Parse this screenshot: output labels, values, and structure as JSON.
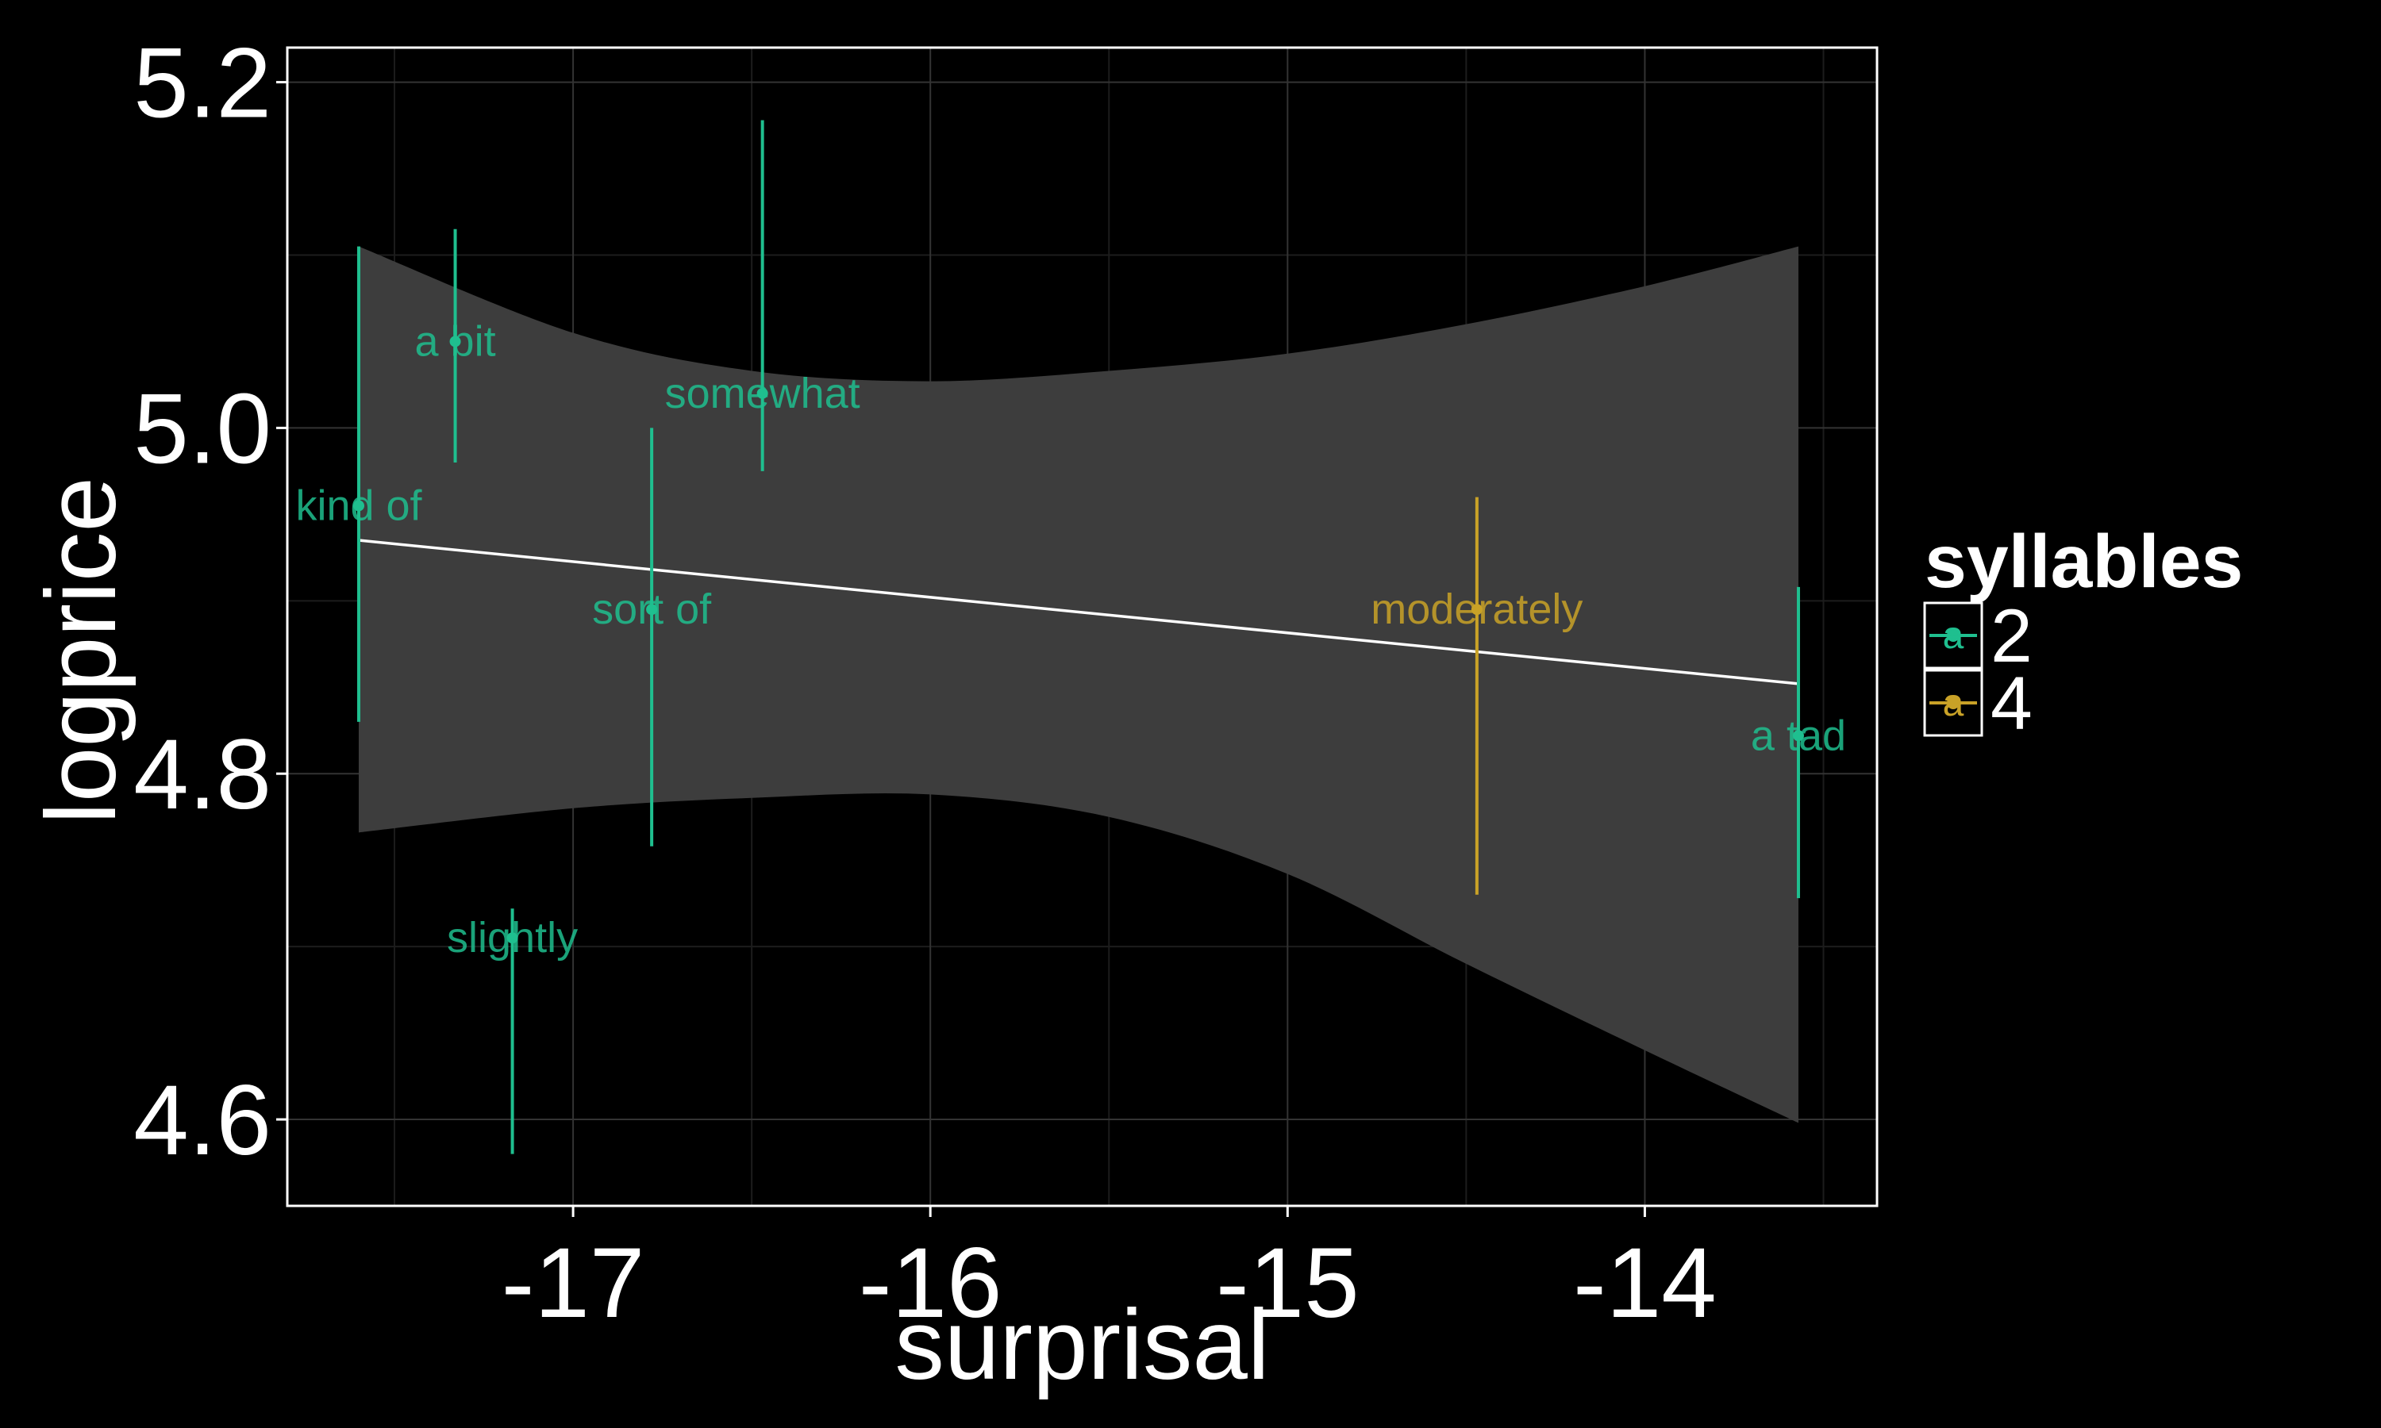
{
  "chart_data": {
    "type": "scatter",
    "xlabel": "surprisal",
    "ylabel": "logprice",
    "xlim": [
      -17.8,
      -13.35
    ],
    "ylim": [
      4.55,
      5.22
    ],
    "x_ticks": [
      -17,
      -16,
      -15,
      -14
    ],
    "y_ticks": [
      4.6,
      4.8,
      5.0,
      5.2
    ],
    "x_tick_labels": [
      "-17",
      "-16",
      "-15",
      "-14"
    ],
    "y_tick_labels": [
      "4.6",
      "4.8",
      "5.0",
      "5.2"
    ],
    "grid": true,
    "legend": {
      "title": "syllables",
      "position": "right",
      "items": [
        {
          "label": "2",
          "color": "#1fbf8f",
          "glyph": "a"
        },
        {
          "label": "4",
          "color": "#c9a227",
          "glyph": "a"
        }
      ]
    },
    "points": [
      {
        "label": "kind of",
        "x": -17.6,
        "y": 4.955,
        "ymin": 4.83,
        "ymax": 5.105,
        "syllables": "2"
      },
      {
        "label": "a bit",
        "x": -17.33,
        "y": 5.05,
        "ymin": 4.98,
        "ymax": 5.115,
        "syllables": "2"
      },
      {
        "label": "somewhat",
        "x": -16.47,
        "y": 5.02,
        "ymin": 4.975,
        "ymax": 5.178,
        "syllables": "2"
      },
      {
        "label": "sort of",
        "x": -16.78,
        "y": 4.895,
        "ymin": 4.758,
        "ymax": 5.0,
        "syllables": "2"
      },
      {
        "label": "slightly",
        "x": -17.17,
        "y": 4.705,
        "ymin": 4.58,
        "ymax": 4.722,
        "syllables": "2"
      },
      {
        "label": "moderately",
        "x": -14.47,
        "y": 4.895,
        "ymin": 4.73,
        "ymax": 4.96,
        "syllables": "4"
      },
      {
        "label": "a tad",
        "x": -13.57,
        "y": 4.822,
        "ymin": 4.728,
        "ymax": 4.908,
        "syllables": "2"
      }
    ],
    "trend": {
      "x": [
        -17.6,
        -13.57
      ],
      "y": [
        4.935,
        4.852
      ],
      "color": "#ffffff"
    },
    "confidence_band": {
      "color": "#3d3d3d",
      "x": [
        -17.6,
        -17.0,
        -16.5,
        -16.0,
        -15.5,
        -15.0,
        -14.5,
        -14.0,
        -13.57
      ],
      "upper": [
        5.105,
        5.055,
        5.033,
        5.027,
        5.033,
        5.043,
        5.06,
        5.082,
        5.105
      ],
      "lower": [
        4.766,
        4.78,
        4.786,
        4.788,
        4.775,
        4.742,
        4.69,
        4.64,
        4.598
      ]
    }
  }
}
